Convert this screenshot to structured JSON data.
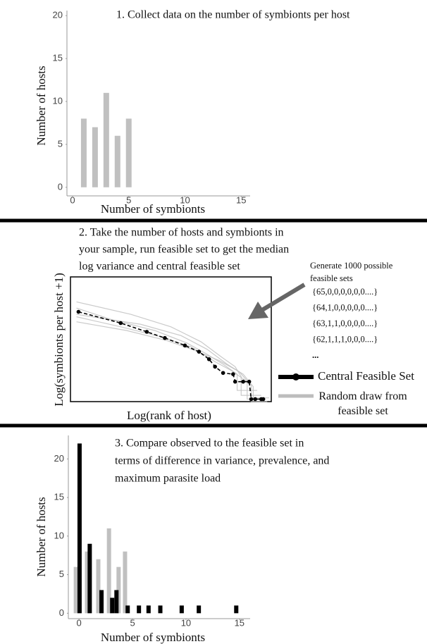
{
  "chart_data": [
    {
      "type": "bar",
      "title": "1. Collect data on the number of symbionts per host",
      "xlabel": "Number of symbionts",
      "ylabel": "Number of hosts",
      "x": [
        1,
        2,
        3,
        4,
        5
      ],
      "values": [
        8,
        7,
        11,
        6,
        8
      ],
      "color": "#c0c0c0",
      "xlim": [
        -0.5,
        15.8
      ],
      "ylim": [
        -1,
        21
      ],
      "xticks": [
        0,
        5,
        10,
        15
      ],
      "yticks": [
        0,
        5,
        10,
        15,
        20
      ]
    },
    {
      "type": "line",
      "title": [
        "2. Take the number of hosts and symbionts in",
        "your sample, run feasible set to get the median",
        "log variance and central feasible set"
      ],
      "xlabel": "Log(rank of host)",
      "ylabel": "Log(symbionts per host +1)",
      "annotation": [
        "Generate 1000 possible",
        "feasible sets"
      ],
      "sets": [
        "{65,0,0,0,0,0,0....}",
        "{64,1,0,0,0,0,0....}",
        "{63,1,1,0,0,0,0....}",
        "{62,1,1,1,0,0,0....}",
        "..."
      ],
      "xlim": [
        0,
        1
      ],
      "ylim": [
        0,
        1
      ],
      "series": [
        {
          "name": "Central Feasible Set",
          "color": "#000000",
          "x": [
            0.04,
            0.25,
            0.38,
            0.47,
            0.57,
            0.64,
            0.69,
            0.72,
            0.76,
            0.81,
            0.82,
            0.86,
            0.89,
            0.9,
            0.92,
            0.95,
            0.96
          ],
          "values": [
            0.72,
            0.63,
            0.56,
            0.51,
            0.45,
            0.4,
            0.34,
            0.28,
            0.23,
            0.22,
            0.16,
            0.16,
            0.16,
            0.02,
            0.02,
            0.02,
            0.02
          ]
        },
        {
          "name": "Random draw from feasible set",
          "color": "#bdbdbd",
          "draws": [
            {
              "x": [
                0.03,
                0.3,
                0.5,
                0.65,
                0.75,
                0.82,
                0.85,
                0.85,
                0.95
              ],
              "values": [
                0.8,
                0.7,
                0.6,
                0.48,
                0.36,
                0.28,
                0.2,
                0.05,
                0.05
              ]
            },
            {
              "x": [
                0.03,
                0.25,
                0.45,
                0.6,
                0.72,
                0.8,
                0.88,
                0.88,
                0.97
              ],
              "values": [
                0.68,
                0.6,
                0.52,
                0.44,
                0.32,
                0.25,
                0.16,
                0.02,
                0.02
              ]
            },
            {
              "x": [
                0.03,
                0.2,
                0.42,
                0.58,
                0.68,
                0.76,
                0.83,
                0.83,
                0.93
              ],
              "values": [
                0.75,
                0.66,
                0.57,
                0.47,
                0.38,
                0.3,
                0.22,
                0.09,
                0.09
              ]
            },
            {
              "x": [
                0.03,
                0.28,
                0.48,
                0.62,
                0.74,
                0.84,
                0.9,
                0.9,
                0.98
              ],
              "values": [
                0.64,
                0.57,
                0.49,
                0.41,
                0.33,
                0.24,
                0.13,
                0.0,
                0.0
              ]
            },
            {
              "x": [
                0.03,
                0.35,
                0.55,
                0.68,
                0.78,
                0.86,
                0.91,
                0.91,
                0.99
              ],
              "values": [
                0.7,
                0.62,
                0.53,
                0.42,
                0.3,
                0.22,
                0.12,
                0.03,
                0.03
              ]
            }
          ]
        }
      ]
    },
    {
      "type": "bar",
      "title": [
        "3. Compare observed to the feasible set in",
        "terms of difference in variance, prevalence, and",
        "maximum parasite load"
      ],
      "xlabel": "Number of symbionts",
      "ylabel": "Number of hosts",
      "xlim": [
        -1,
        16
      ],
      "ylim": [
        -0.7,
        23.5
      ],
      "xticks": [
        0,
        5,
        10,
        15
      ],
      "yticks": [
        0,
        5,
        10,
        15,
        20
      ],
      "series": [
        {
          "color": "#c0c0c0",
          "x": [
            -0.3,
            0.75,
            1.8,
            2.8,
            3.7,
            4.3
          ],
          "values": [
            6,
            8,
            7,
            11,
            6,
            8
          ]
        },
        {
          "color": "#000000",
          "x": [
            0.05,
            1.0,
            2.1,
            3.1,
            3.5,
            4.55,
            5.6,
            6.5,
            7.6,
            9.6,
            11.2,
            14.7
          ],
          "values": [
            22,
            9,
            3,
            2,
            3,
            1,
            1,
            1,
            1,
            1,
            1,
            1
          ]
        }
      ]
    }
  ]
}
